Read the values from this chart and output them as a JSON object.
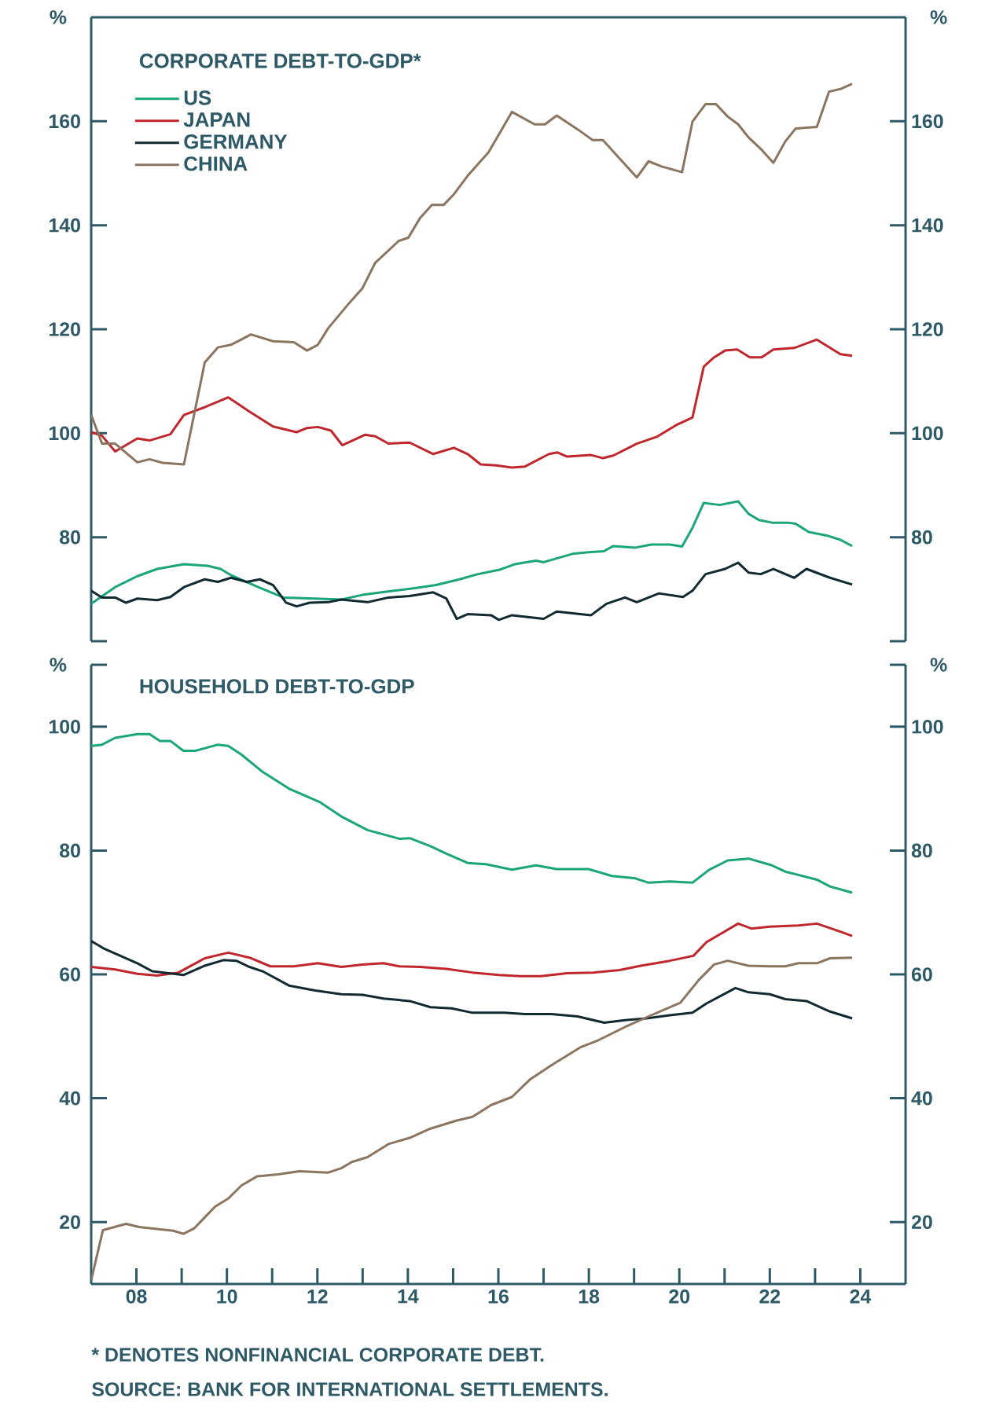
{
  "chart_data": [
    {
      "type": "line",
      "title": "CORPORATE DEBT-TO-GDP*",
      "ylabel": "%",
      "y2label": "%",
      "xlim": [
        2007,
        2025
      ],
      "ylim": [
        60,
        180
      ],
      "yticks": [
        {
          "value": 60,
          "label": null
        },
        80,
        100,
        120,
        140,
        160
      ],
      "y2lim": [
        60,
        180
      ],
      "y2ticks": [
        {
          "value": 60,
          "label": null
        },
        80,
        100,
        120,
        140,
        160
      ],
      "tick_labels": "y",
      "legend": "top left",
      "series": [
        {
          "name": "US",
          "color": "#1aa57a",
          "x": [
            2007.0,
            2007.53,
            2008.02,
            2008.46,
            2009.05,
            2009.57,
            2009.86,
            2010.09,
            2010.67,
            2011.25,
            2011.95,
            2012.53,
            2012.99,
            2013.69,
            2014.15,
            2014.62,
            2015.14,
            2015.55,
            2016.01,
            2016.36,
            2016.83,
            2017.0,
            2017.64,
            2017.99,
            2018.33,
            2018.54,
            2019.03,
            2019.38,
            2019.79,
            2020.06,
            2020.29,
            2020.54,
            2020.89,
            2021.3,
            2021.53,
            2021.76,
            2022.05,
            2022.4,
            2022.57,
            2022.86,
            2023.27,
            2023.56,
            2023.82
          ],
          "values": [
            67.2,
            70.4,
            72.5,
            73.9,
            74.8,
            74.5,
            73.9,
            72.7,
            70.5,
            68.4,
            68.2,
            68.0,
            68.9,
            69.7,
            70.2,
            70.8,
            71.9,
            72.9,
            73.7,
            74.8,
            75.5,
            75.2,
            76.8,
            77.1,
            77.3,
            78.3,
            78.0,
            78.6,
            78.6,
            78.2,
            81.8,
            86.6,
            86.2,
            86.9,
            84.5,
            83.3,
            82.8,
            82.8,
            82.6,
            81.0,
            80.3,
            79.5,
            78.3
          ]
        },
        {
          "name": "JAPAN",
          "color": "#c0272d",
          "x": [
            2007.0,
            2007.24,
            2007.53,
            2008.02,
            2008.29,
            2008.75,
            2009.05,
            2009.51,
            2010.03,
            2010.49,
            2011.02,
            2011.54,
            2011.77,
            2012.01,
            2012.3,
            2012.55,
            2013.05,
            2013.28,
            2013.57,
            2014.04,
            2014.56,
            2015.02,
            2015.32,
            2015.61,
            2015.95,
            2016.3,
            2016.59,
            2017.12,
            2017.31,
            2017.52,
            2018.05,
            2018.31,
            2018.54,
            2019.06,
            2019.5,
            2019.96,
            2020.29,
            2020.54,
            2020.77,
            2021.01,
            2021.28,
            2021.56,
            2021.82,
            2022.08,
            2022.54,
            2023.04,
            2023.56,
            2023.82
          ],
          "values": [
            100.2,
            99.5,
            96.5,
            99.0,
            98.6,
            99.8,
            103.5,
            105.0,
            106.9,
            104.2,
            101.3,
            100.2,
            101.0,
            101.2,
            100.5,
            97.7,
            99.7,
            99.4,
            98.0,
            98.2,
            96.0,
            97.2,
            96.0,
            94.0,
            93.8,
            93.4,
            93.6,
            96.0,
            96.3,
            95.5,
            95.8,
            95.2,
            95.7,
            98.0,
            99.3,
            101.7,
            103.0,
            112.8,
            114.6,
            115.9,
            116.1,
            114.6,
            114.6,
            116.1,
            116.4,
            118.0,
            115.2,
            114.9
          ]
        },
        {
          "name": "GERMANY",
          "color": "#112a31",
          "x": [
            2007.0,
            2007.24,
            2007.53,
            2007.77,
            2008.02,
            2008.46,
            2008.75,
            2009.05,
            2009.51,
            2009.8,
            2010.09,
            2010.44,
            2010.73,
            2011.02,
            2011.31,
            2011.54,
            2011.83,
            2012.24,
            2012.53,
            2013.11,
            2013.57,
            2014.04,
            2014.56,
            2014.85,
            2015.08,
            2015.32,
            2015.84,
            2016.01,
            2016.3,
            2017.0,
            2017.29,
            2018.05,
            2018.39,
            2018.8,
            2019.06,
            2019.55,
            2020.08,
            2020.29,
            2020.58,
            2021.01,
            2021.3,
            2021.53,
            2021.8,
            2022.08,
            2022.54,
            2022.81,
            2023.33,
            2023.82
          ],
          "values": [
            69.7,
            68.4,
            68.4,
            67.4,
            68.2,
            67.9,
            68.5,
            70.4,
            71.9,
            71.4,
            72.2,
            71.4,
            71.9,
            70.8,
            67.4,
            66.7,
            67.4,
            67.5,
            68.0,
            67.5,
            68.4,
            68.7,
            69.4,
            68.2,
            64.3,
            65.2,
            65.0,
            64.1,
            65.0,
            64.3,
            65.7,
            65.0,
            67.2,
            68.4,
            67.5,
            69.2,
            68.5,
            69.7,
            72.9,
            73.9,
            75.1,
            73.2,
            72.9,
            73.9,
            72.2,
            73.9,
            72.2,
            70.9
          ]
        },
        {
          "name": "CHINA",
          "color": "#8b7560",
          "x": [
            2007.0,
            2007.24,
            2007.53,
            2008.02,
            2008.29,
            2008.58,
            2009.05,
            2009.51,
            2009.8,
            2010.09,
            2010.53,
            2011.02,
            2011.48,
            2011.77,
            2012.01,
            2012.24,
            2012.7,
            2012.99,
            2013.28,
            2013.8,
            2014.01,
            2014.27,
            2014.53,
            2014.79,
            2015.02,
            2015.32,
            2015.78,
            2016.3,
            2016.8,
            2017.03,
            2017.29,
            2017.76,
            2018.08,
            2018.31,
            2019.06,
            2019.32,
            2019.61,
            2020.06,
            2020.29,
            2020.58,
            2020.81,
            2021.07,
            2021.3,
            2021.53,
            2021.82,
            2022.08,
            2022.34,
            2022.57,
            2023.04,
            2023.31,
            2023.56,
            2023.82
          ],
          "values": [
            103.5,
            98.0,
            98.0,
            94.4,
            95.0,
            94.3,
            94.0,
            113.6,
            116.5,
            117.0,
            119.0,
            117.7,
            117.5,
            115.9,
            117.0,
            120.2,
            125.0,
            127.8,
            132.8,
            137.0,
            137.6,
            141.4,
            143.9,
            143.9,
            146.0,
            149.5,
            154.0,
            161.8,
            159.4,
            159.4,
            161.1,
            158.4,
            156.4,
            156.4,
            149.2,
            152.3,
            151.3,
            150.2,
            159.9,
            163.3,
            163.3,
            160.9,
            159.4,
            156.9,
            154.5,
            152.0,
            156.1,
            158.6,
            158.9,
            165.7,
            166.2,
            167.2
          ]
        }
      ]
    },
    {
      "type": "line",
      "title": "HOUSEHOLD DEBT-TO-GDP",
      "ylabel": "%",
      "y2label": "%",
      "xlim": [
        2007,
        2025
      ],
      "ylim": [
        10,
        110
      ],
      "yticks": [
        20,
        40,
        60,
        80,
        100,
        {
          "value": 110,
          "label": null
        }
      ],
      "y2lim": [
        10,
        110
      ],
      "y2ticks": [
        20,
        40,
        60,
        80,
        100,
        {
          "value": 110,
          "label": null
        }
      ],
      "xticks": [
        {
          "value": 2008,
          "label": "08"
        },
        {
          "value": 2009,
          "label": null
        },
        {
          "value": 2010,
          "label": "10"
        },
        {
          "value": 2011,
          "label": null
        },
        {
          "value": 2012,
          "label": "12"
        },
        {
          "value": 2013,
          "label": null
        },
        {
          "value": 2014,
          "label": "14"
        },
        {
          "value": 2015,
          "label": null
        },
        {
          "value": 2016,
          "label": "16"
        },
        {
          "value": 2017,
          "label": null
        },
        {
          "value": 2018,
          "label": "18"
        },
        {
          "value": 2019,
          "label": null
        },
        {
          "value": 2020,
          "label": "20"
        },
        {
          "value": 2021,
          "label": null
        },
        {
          "value": 2022,
          "label": "22"
        },
        {
          "value": 2023,
          "label": null
        },
        {
          "value": 2024,
          "label": "24"
        }
      ],
      "annotations": [
        "* DENOTES NONFINANCIAL CORPORATE DEBT.",
        "SOURCE: BANK FOR INTERNATIONAL SETTLEMENTS."
      ],
      "series": [
        {
          "color": "#1aa57a",
          "x": [
            2007.0,
            2007.24,
            2007.53,
            2008.02,
            2008.29,
            2008.52,
            2008.75,
            2009.04,
            2009.3,
            2009.8,
            2010.03,
            2010.32,
            2010.79,
            2011.37,
            2012.06,
            2012.53,
            2013.11,
            2013.81,
            2014.04,
            2014.5,
            2014.85,
            2015.32,
            2015.72,
            2016.3,
            2016.83,
            2017.29,
            2017.99,
            2018.51,
            2019.03,
            2019.32,
            2019.79,
            2020.29,
            2020.66,
            2021.07,
            2021.53,
            2022.05,
            2022.34,
            2023.04,
            2023.33,
            2023.82
          ],
          "values": [
            96.9,
            97.1,
            98.2,
            98.8,
            98.8,
            97.7,
            97.7,
            96.1,
            96.1,
            97.1,
            96.9,
            95.5,
            92.7,
            90.0,
            87.8,
            85.5,
            83.3,
            81.9,
            82.0,
            80.7,
            79.5,
            78.0,
            77.8,
            76.9,
            77.6,
            77.0,
            77.0,
            75.9,
            75.5,
            74.8,
            75.0,
            74.8,
            76.9,
            78.4,
            78.7,
            77.6,
            76.6,
            75.3,
            74.2,
            73.2
          ]
        },
        {
          "color": "#c0272d",
          "x": [
            2007.0,
            2007.53,
            2008.02,
            2008.46,
            2008.93,
            2009.51,
            2010.03,
            2010.5,
            2010.96,
            2011.48,
            2012.01,
            2012.53,
            2013.0,
            2013.46,
            2013.81,
            2014.27,
            2014.85,
            2015.43,
            2016.01,
            2016.48,
            2016.94,
            2017.52,
            2018.1,
            2018.68,
            2019.15,
            2019.79,
            2020.31,
            2020.6,
            2021.3,
            2021.59,
            2022.0,
            2022.63,
            2023.04,
            2023.56,
            2023.82
          ],
          "values": [
            61.2,
            60.8,
            60.1,
            59.8,
            60.3,
            62.6,
            63.5,
            62.7,
            61.3,
            61.3,
            61.8,
            61.2,
            61.6,
            61.8,
            61.3,
            61.2,
            60.9,
            60.3,
            59.9,
            59.7,
            59.7,
            60.2,
            60.3,
            60.7,
            61.4,
            62.2,
            63.0,
            65.2,
            68.2,
            67.4,
            67.7,
            67.9,
            68.2,
            66.9,
            66.2
          ]
        },
        {
          "color": "#112a31",
          "x": [
            2007.0,
            2007.3,
            2008.02,
            2008.35,
            2009.04,
            2009.51,
            2009.92,
            2010.21,
            2010.5,
            2010.79,
            2011.37,
            2011.95,
            2012.53,
            2013.0,
            2013.46,
            2014.04,
            2014.5,
            2014.97,
            2015.43,
            2016.13,
            2016.59,
            2017.17,
            2017.75,
            2018.34,
            2018.8,
            2019.27,
            2019.79,
            2020.29,
            2020.6,
            2021.24,
            2021.53,
            2022.0,
            2022.34,
            2022.81,
            2023.33,
            2023.82
          ],
          "values": [
            65.4,
            64.1,
            61.8,
            60.5,
            59.9,
            61.4,
            62.3,
            62.2,
            61.2,
            60.5,
            58.2,
            57.4,
            56.8,
            56.7,
            56.1,
            55.7,
            54.7,
            54.5,
            53.8,
            53.8,
            53.6,
            53.6,
            53.2,
            52.2,
            52.6,
            52.9,
            53.4,
            53.8,
            55.3,
            57.8,
            57.1,
            56.8,
            56.0,
            55.7,
            54.0,
            52.9
          ]
        },
        {
          "color": "#8b7560",
          "x": [
            2007.0,
            2007.26,
            2007.77,
            2008.06,
            2008.81,
            2009.04,
            2009.28,
            2009.74,
            2010.03,
            2010.32,
            2010.67,
            2011.13,
            2011.6,
            2012.24,
            2012.53,
            2012.76,
            2013.11,
            2013.57,
            2014.04,
            2014.5,
            2015.08,
            2015.43,
            2015.84,
            2016.3,
            2016.71,
            2017.23,
            2017.81,
            2018.22,
            2018.8,
            2019.38,
            2020.02,
            2020.43,
            2020.77,
            2021.07,
            2021.53,
            2022.0,
            2022.34,
            2022.63,
            2023.04,
            2023.33,
            2023.82
          ],
          "values": [
            10.6,
            18.7,
            19.7,
            19.2,
            18.6,
            18.1,
            19.0,
            22.5,
            23.8,
            25.9,
            27.4,
            27.7,
            28.2,
            28.0,
            28.7,
            29.7,
            30.5,
            32.6,
            33.6,
            35.1,
            36.4,
            37.0,
            38.9,
            40.2,
            43.1,
            45.6,
            48.2,
            49.4,
            51.5,
            53.4,
            55.4,
            59.1,
            61.6,
            62.2,
            61.4,
            61.3,
            61.3,
            61.8,
            61.8,
            62.6,
            62.7
          ]
        }
      ]
    }
  ]
}
